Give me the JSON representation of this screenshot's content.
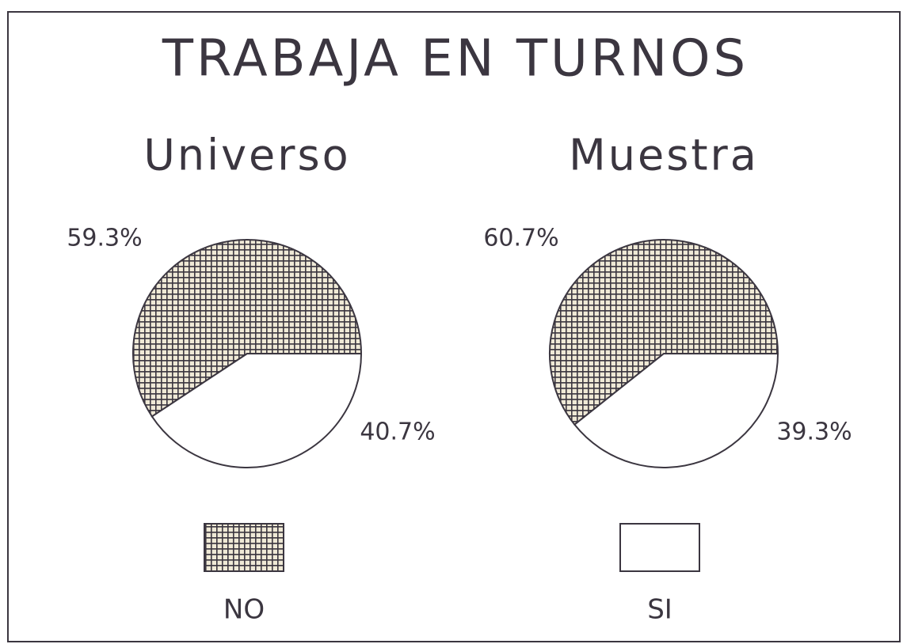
{
  "title": "TRABAJA EN TURNOS",
  "chart_data": [
    {
      "type": "pie",
      "title": "Universo",
      "categories": [
        "NO",
        "SI"
      ],
      "values": [
        59.3,
        40.7
      ],
      "value_labels": [
        "59.3%",
        "40.7%"
      ],
      "colors": [
        "#3b3640",
        "#ffffff"
      ]
    },
    {
      "type": "pie",
      "title": "Muestra",
      "categories": [
        "NO",
        "SI"
      ],
      "values": [
        60.7,
        39.3
      ],
      "value_labels": [
        "60.7%",
        "39.3%"
      ],
      "colors": [
        "#3b3640",
        "#ffffff"
      ]
    }
  ]
}
